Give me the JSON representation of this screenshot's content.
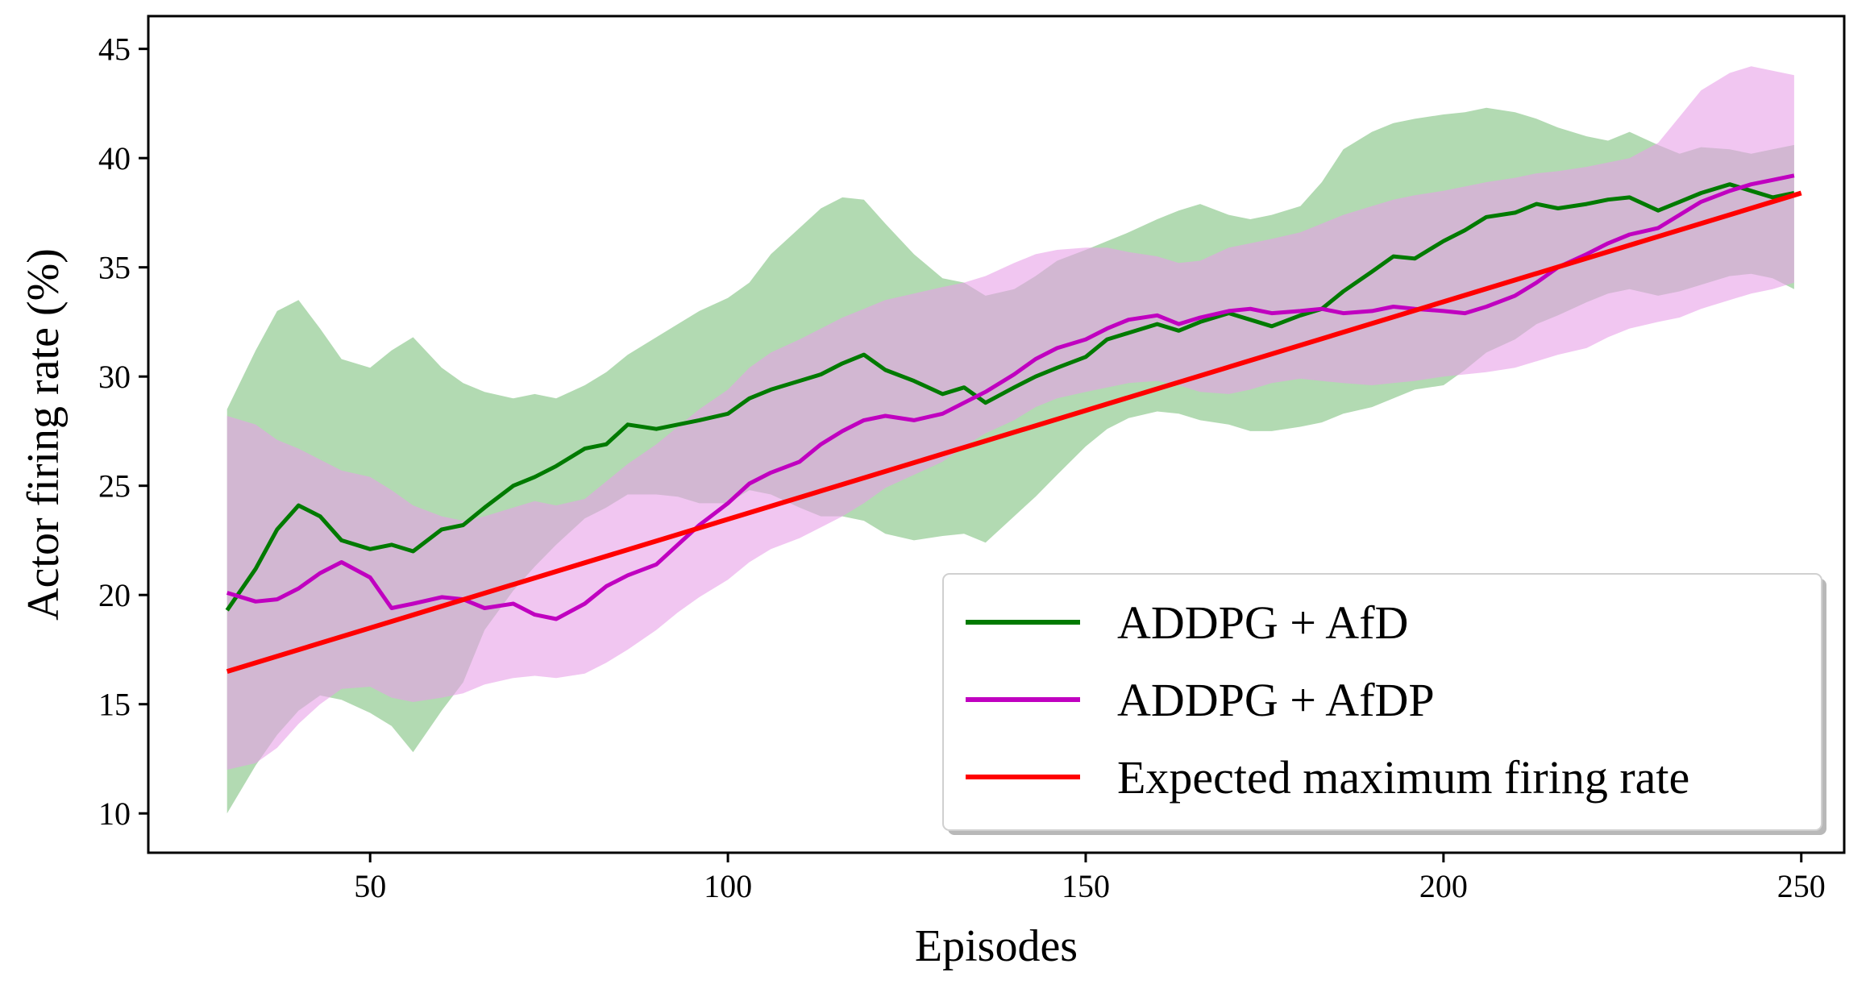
{
  "chart_data": {
    "type": "line",
    "title": "",
    "xlabel": "Episodes",
    "ylabel": "Actor firing rate (%)",
    "xlim": [
      19,
      256
    ],
    "ylim": [
      8.2,
      46.5
    ],
    "xticks": [
      50,
      100,
      150,
      200,
      250
    ],
    "yticks": [
      10,
      15,
      20,
      25,
      30,
      35,
      40,
      45
    ],
    "grid": false,
    "legend_position": "bottom-right",
    "series": [
      {
        "name": "ADDPG + AfD",
        "color": "#007a00",
        "band_color": "#7fc27f",
        "x": [
          30,
          34,
          37,
          40,
          43,
          46,
          50,
          53,
          56,
          60,
          63,
          66,
          70,
          73,
          76,
          80,
          83,
          86,
          90,
          93,
          96,
          100,
          103,
          106,
          110,
          113,
          116,
          119,
          122,
          126,
          130,
          133,
          136,
          140,
          143,
          146,
          150,
          153,
          156,
          160,
          163,
          166,
          170,
          173,
          176,
          180,
          183,
          186,
          190,
          193,
          196,
          200,
          203,
          206,
          210,
          213,
          216,
          220,
          223,
          226,
          230,
          233,
          236,
          240,
          243,
          246,
          249
        ],
        "mean": [
          19.3,
          21.2,
          23.0,
          24.1,
          23.6,
          22.5,
          22.1,
          22.3,
          22.0,
          23.0,
          23.2,
          24.0,
          25.0,
          25.4,
          25.9,
          26.7,
          26.9,
          27.8,
          27.6,
          27.8,
          28.0,
          28.3,
          29.0,
          29.4,
          29.8,
          30.1,
          30.6,
          31.0,
          30.3,
          29.8,
          29.2,
          29.5,
          28.8,
          29.5,
          30.0,
          30.4,
          30.9,
          31.7,
          32.0,
          32.4,
          32.1,
          32.5,
          32.9,
          32.6,
          32.3,
          32.8,
          33.1,
          33.9,
          34.8,
          35.5,
          35.4,
          36.2,
          36.7,
          37.3,
          37.5,
          37.9,
          37.7,
          37.9,
          38.1,
          38.2,
          37.6,
          38.0,
          38.4,
          38.8,
          38.5,
          38.2,
          38.4
        ],
        "upper": [
          28.5,
          31.2,
          33.0,
          33.5,
          32.2,
          30.8,
          30.4,
          31.2,
          31.8,
          30.4,
          29.7,
          29.3,
          29.0,
          29.2,
          29.0,
          29.6,
          30.2,
          31.0,
          31.8,
          32.4,
          33.0,
          33.6,
          34.3,
          35.6,
          36.8,
          37.7,
          38.2,
          38.1,
          37.0,
          35.6,
          34.5,
          34.3,
          33.7,
          34.0,
          34.6,
          35.3,
          35.8,
          36.2,
          36.6,
          37.2,
          37.6,
          37.9,
          37.4,
          37.2,
          37.4,
          37.8,
          38.9,
          40.4,
          41.2,
          41.6,
          41.8,
          42.0,
          42.1,
          42.3,
          42.1,
          41.8,
          41.4,
          41.0,
          40.8,
          41.2,
          40.6,
          40.2,
          40.5,
          40.4,
          40.2,
          40.4,
          40.6
        ],
        "lower": [
          10.0,
          12.2,
          13.6,
          14.7,
          15.4,
          15.2,
          14.6,
          14.0,
          12.8,
          14.7,
          16.0,
          18.4,
          20.2,
          21.3,
          22.3,
          23.5,
          24.0,
          24.6,
          24.6,
          24.5,
          24.2,
          24.2,
          24.8,
          24.6,
          24.0,
          23.6,
          23.6,
          23.4,
          22.8,
          22.5,
          22.7,
          22.8,
          22.4,
          23.6,
          24.5,
          25.5,
          26.8,
          27.6,
          28.1,
          28.4,
          28.3,
          28.0,
          27.8,
          27.5,
          27.5,
          27.7,
          27.9,
          28.3,
          28.6,
          29.0,
          29.4,
          29.6,
          30.3,
          31.1,
          31.7,
          32.4,
          32.8,
          33.4,
          33.8,
          34.0,
          33.7,
          33.9,
          34.2,
          34.6,
          34.7,
          34.5,
          34.0
        ]
      },
      {
        "name": "ADDPG + AfDP",
        "color": "#c000c0",
        "band_color": "#e8a0e8",
        "x": [
          30,
          34,
          37,
          40,
          43,
          46,
          50,
          53,
          56,
          60,
          63,
          66,
          70,
          73,
          76,
          80,
          83,
          86,
          90,
          93,
          96,
          100,
          103,
          106,
          110,
          113,
          116,
          119,
          122,
          126,
          130,
          133,
          136,
          140,
          143,
          146,
          150,
          153,
          156,
          160,
          163,
          166,
          170,
          173,
          176,
          180,
          183,
          186,
          190,
          193,
          196,
          200,
          203,
          206,
          210,
          213,
          216,
          220,
          223,
          226,
          230,
          233,
          236,
          240,
          243,
          246,
          249
        ],
        "mean": [
          20.1,
          19.7,
          19.8,
          20.3,
          21.0,
          21.5,
          20.8,
          19.4,
          19.6,
          19.9,
          19.8,
          19.4,
          19.6,
          19.1,
          18.9,
          19.6,
          20.4,
          20.9,
          21.4,
          22.3,
          23.2,
          24.2,
          25.1,
          25.6,
          26.1,
          26.9,
          27.5,
          28.0,
          28.2,
          28.0,
          28.3,
          28.8,
          29.3,
          30.1,
          30.8,
          31.3,
          31.7,
          32.2,
          32.6,
          32.8,
          32.4,
          32.7,
          33.0,
          33.1,
          32.9,
          33.0,
          33.1,
          32.9,
          33.0,
          33.2,
          33.1,
          33.0,
          32.9,
          33.2,
          33.7,
          34.3,
          35.0,
          35.6,
          36.1,
          36.5,
          36.8,
          37.4,
          38.0,
          38.5,
          38.8,
          39.0,
          39.2
        ],
        "upper": [
          28.2,
          27.8,
          27.1,
          26.7,
          26.2,
          25.7,
          25.4,
          24.8,
          24.1,
          23.6,
          23.4,
          23.6,
          24.0,
          24.3,
          24.1,
          24.4,
          25.2,
          26.0,
          26.9,
          27.7,
          28.5,
          29.4,
          30.4,
          31.1,
          31.7,
          32.2,
          32.7,
          33.1,
          33.5,
          33.8,
          34.1,
          34.3,
          34.6,
          35.2,
          35.6,
          35.8,
          35.9,
          35.9,
          35.7,
          35.5,
          35.2,
          35.3,
          35.9,
          36.1,
          36.3,
          36.6,
          37.0,
          37.4,
          37.8,
          38.1,
          38.3,
          38.5,
          38.7,
          38.9,
          39.1,
          39.3,
          39.4,
          39.6,
          39.8,
          40.0,
          40.7,
          41.9,
          43.1,
          43.9,
          44.2,
          44.0,
          43.8
        ],
        "lower": [
          12.0,
          12.3,
          13.0,
          14.1,
          15.0,
          15.7,
          15.8,
          15.3,
          15.1,
          15.3,
          15.5,
          15.9,
          16.2,
          16.3,
          16.2,
          16.4,
          16.9,
          17.5,
          18.4,
          19.2,
          19.9,
          20.7,
          21.5,
          22.1,
          22.6,
          23.1,
          23.6,
          24.2,
          24.9,
          25.5,
          26.1,
          26.8,
          27.4,
          28.0,
          28.6,
          29.0,
          29.3,
          29.5,
          29.7,
          29.8,
          29.6,
          29.3,
          29.2,
          29.4,
          29.7,
          29.9,
          29.8,
          29.7,
          29.6,
          29.7,
          29.8,
          30.0,
          30.1,
          30.2,
          30.4,
          30.7,
          31.0,
          31.3,
          31.8,
          32.2,
          32.5,
          32.7,
          33.1,
          33.5,
          33.8,
          34.0,
          34.3
        ]
      },
      {
        "name": "Expected maximum firing rate",
        "color": "#ff0000",
        "x": [
          30,
          250
        ],
        "mean": [
          16.5,
          38.4
        ]
      }
    ]
  }
}
